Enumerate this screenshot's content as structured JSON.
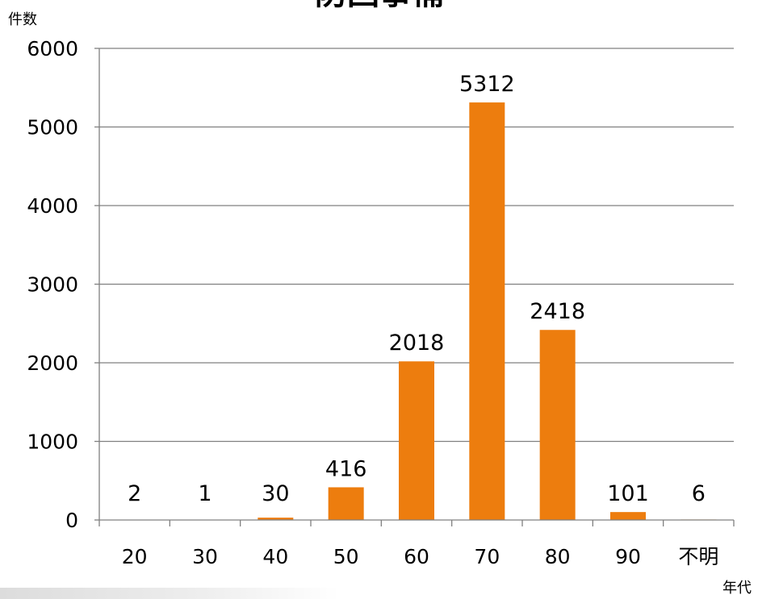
{
  "chart_data": {
    "type": "bar",
    "title": "防回事補",
    "ylabel": "件数",
    "xlabel": "年代",
    "categories": [
      "20",
      "30",
      "40",
      "50",
      "60",
      "70",
      "80",
      "90",
      "不明"
    ],
    "values": [
      2,
      1,
      30,
      416,
      2018,
      5312,
      2418,
      101,
      6
    ],
    "data_labels": [
      "2",
      "1",
      "30",
      "416",
      "2018",
      "5312",
      "2418",
      "101",
      "6"
    ],
    "ylim": [
      0,
      6000
    ],
    "yticks": [
      "0",
      "1000",
      "2000",
      "3000",
      "4000",
      "5000",
      "6000"
    ],
    "grid": true,
    "legend": "none",
    "colors": {
      "bar": "#ED7D0E",
      "grid": "#808080",
      "axis": "#808080"
    }
  }
}
